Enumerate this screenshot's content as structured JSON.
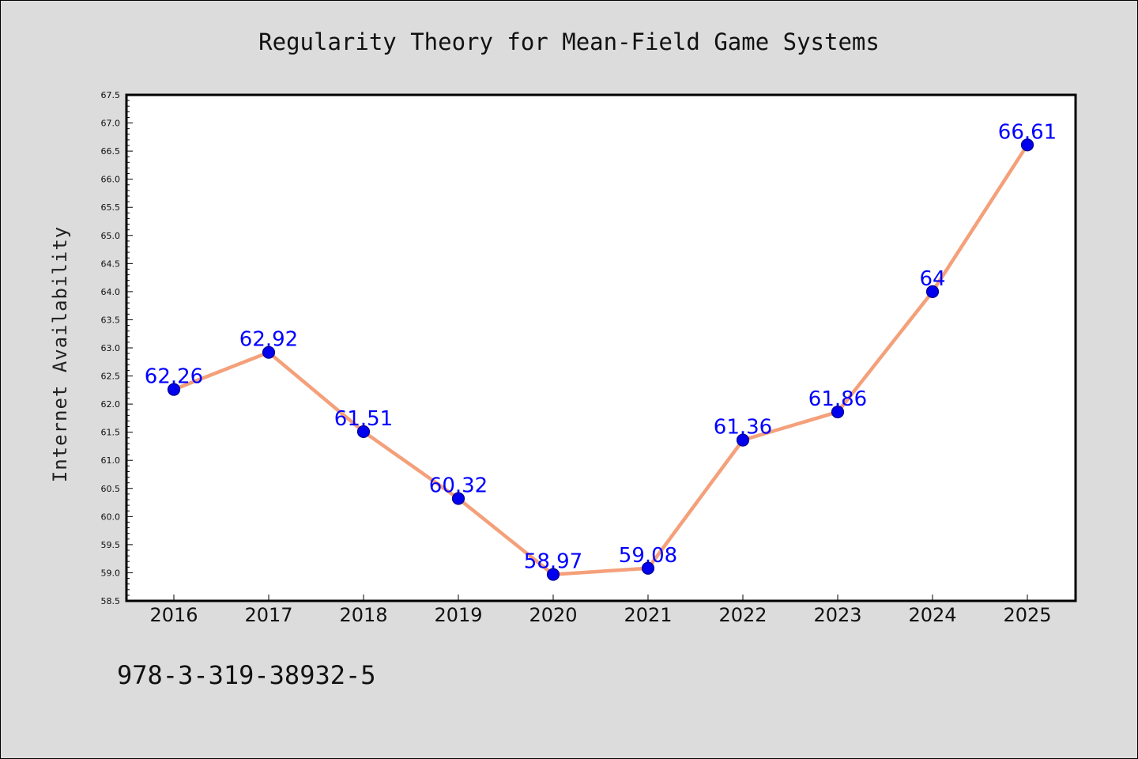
{
  "chart_data": {
    "type": "line",
    "title": "Regularity Theory for Mean-Field Game Systems",
    "xlabel": "",
    "ylabel": "Internet Availability",
    "categories": [
      "2016",
      "2017",
      "2018",
      "2019",
      "2020",
      "2021",
      "2022",
      "2023",
      "2024",
      "2025"
    ],
    "series": [
      {
        "values": [
          62.26,
          62.92,
          61.51,
          60.32,
          58.97,
          59.08,
          61.36,
          61.86,
          64,
          66.61
        ],
        "labels": [
          "62.26",
          "62.92",
          "61.51",
          "60.32",
          "58.97",
          "59.08",
          "61.36",
          "61.86",
          "64",
          "66.61"
        ]
      }
    ],
    "ylim": [
      58.5,
      67.5
    ],
    "yticks": [
      "58.5",
      "59.0",
      "59.5",
      "60.0",
      "60.5",
      "61.0",
      "61.5",
      "62.0",
      "62.5",
      "63.0",
      "63.5",
      "64.0",
      "64.5",
      "65.0",
      "65.5",
      "66.0",
      "66.5",
      "67.0",
      "67.5"
    ],
    "grid": false,
    "colors": {
      "line": "#f4a07a",
      "marker": "#0000ee",
      "marker_edge": "#00008b",
      "label": "#0000ff"
    }
  },
  "footer": {
    "text": "978-3-319-38932-5"
  }
}
